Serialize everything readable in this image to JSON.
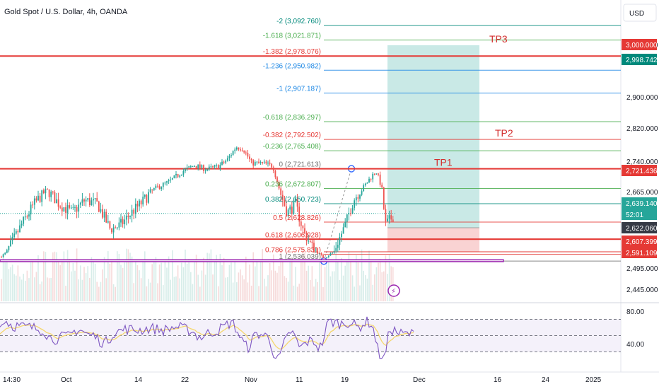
{
  "header": {
    "title": "Gold Spot / U.S. Dollar, 4h, OANDA",
    "currency_button": "USD"
  },
  "colors": {
    "up": "#26a69a",
    "down": "#ef5350",
    "support_red": "#e53935",
    "purple": "#9c27b0",
    "rsi_line": "#7e57c2",
    "rsi_ma": "#f5d76e",
    "tp_zone": "#b2dfdb",
    "sl_zone": "#f8c8c8"
  },
  "chart_data": {
    "type": "candlestick",
    "main_y_ticks": [
      "3,000.000",
      "2,900.000",
      "2,820.000",
      "2,740.000",
      "2,665.000",
      "2,495.000",
      "2,445.000"
    ],
    "rsi_y_ticks": [
      "80.00",
      "40.00"
    ],
    "x_ticks": [
      "14:30",
      "Oct",
      "14",
      "22",
      "Nov",
      "11",
      "19",
      "Dec",
      "16",
      "24",
      "2025"
    ],
    "price_badges": [
      {
        "label": "3,000.000",
        "value": 3000.0,
        "color": "#e53935"
      },
      {
        "label": "2,998.742",
        "value": 2998.742,
        "color": "#00897b"
      },
      {
        "label": "2,721.436",
        "value": 2721.436,
        "color": "#e53935"
      },
      {
        "label": "2,639.140",
        "value": 2639.14,
        "color": "#26a69a"
      },
      {
        "label": "52:01",
        "value": 2629.0,
        "color": "#26a69a"
      },
      {
        "label": "2,622.060",
        "value": 2622.06,
        "color": "#363a45"
      },
      {
        "label": "2,607.399",
        "value": 2607.399,
        "color": "#e53935"
      },
      {
        "label": "2,591.109",
        "value": 2591.109,
        "color": "#e53935"
      }
    ],
    "fib_levels": [
      {
        "label": "-2 (3,092.760)",
        "value": 3092.76,
        "color": "#00897b"
      },
      {
        "label": "-1.618 (3,021.871)",
        "value": 3021.871,
        "color": "#4caf50"
      },
      {
        "label": "-1.382 (2,978.076)",
        "value": 2978.076,
        "color": "#e53935"
      },
      {
        "label": "-1.236 (2,950.982)",
        "value": 2950.982,
        "color": "#1e88e5"
      },
      {
        "label": "-1 (2,907.187)",
        "value": 2907.187,
        "color": "#1e88e5"
      },
      {
        "label": "-0.618 (2,836.297)",
        "value": 2836.297,
        "color": "#4caf50"
      },
      {
        "label": "-0.382 (2,792.502)",
        "value": 2792.502,
        "color": "#e53935"
      },
      {
        "label": "-0.236 (2,765.408)",
        "value": 2765.408,
        "color": "#4caf50"
      },
      {
        "label": "0 (2,721.613)",
        "value": 2721.613,
        "color": "#757575"
      },
      {
        "label": "0.236 (2,672.807)",
        "value": 2672.807,
        "color": "#4caf50"
      },
      {
        "label": "0.382 (2,650.723)",
        "value": 2650.723,
        "color": "#00897b"
      },
      {
        "label": "0.5 (2,628.826)",
        "value": 2628.826,
        "color": "#e53935"
      },
      {
        "label": "0.618 (2,606.928)",
        "value": 2606.928,
        "color": "#e53935"
      },
      {
        "label": "0.786 (2,575.831)",
        "value": 2575.831,
        "color": "#e53935"
      },
      {
        "label": "1 (2,536.039)",
        "value": 2536.039,
        "color": "#757575"
      }
    ],
    "horizontal_lines": [
      {
        "value": 2978.076,
        "color": "#e53935"
      },
      {
        "value": 2721.436,
        "color": "#e53935"
      },
      {
        "value": 2607.399,
        "color": "#e53935"
      }
    ],
    "targets": [
      {
        "label": "TP3",
        "value": 2998.742
      },
      {
        "label": "TP2",
        "value": 2792.502
      },
      {
        "label": "TP1",
        "value": 2721.436
      }
    ],
    "position": {
      "entry": 2622.06,
      "take_profit": 2998.742,
      "stop_loss": 2591.109
    },
    "purple_box": {
      "top": 2544.0,
      "bottom": 2533.0
    },
    "rsi": {
      "upper": 70,
      "middle": 50,
      "lower": 30
    }
  }
}
